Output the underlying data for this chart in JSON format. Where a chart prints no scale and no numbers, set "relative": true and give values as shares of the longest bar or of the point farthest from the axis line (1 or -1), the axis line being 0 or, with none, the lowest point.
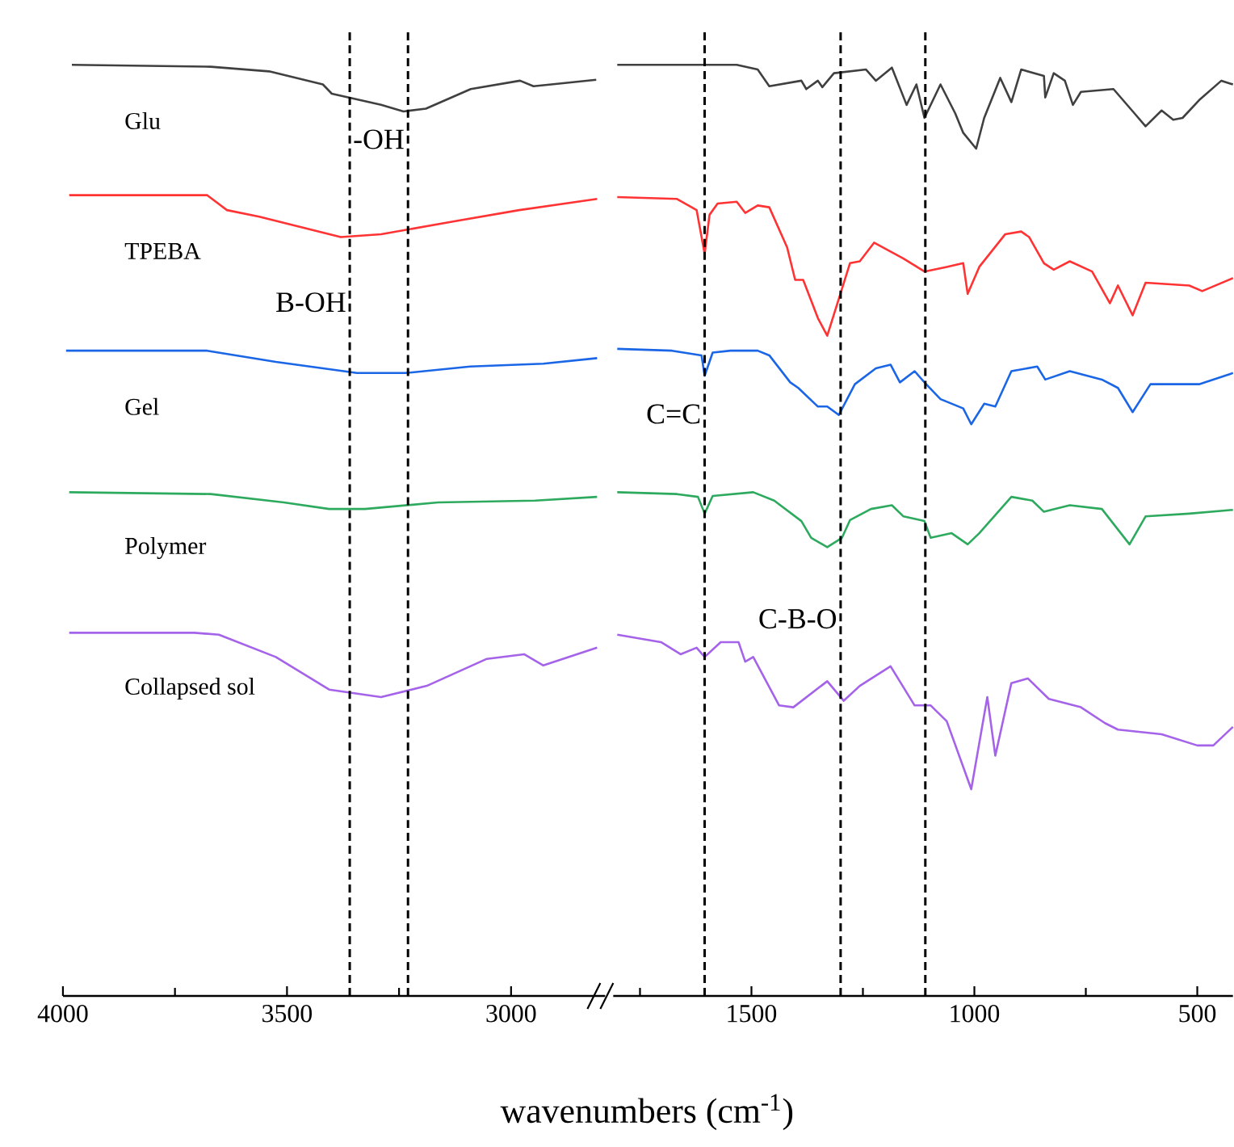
{
  "chart_data": [
    {
      "type": "line",
      "xlabel": "wavenumbers (cm$^{-1}$)",
      "relative": true,
      "tick_labels": "x",
      "xlim": [
        4000,
        2790
      ],
      "xticks": [
        4000,
        {
          "value": 3750,
          "label": null
        },
        3500,
        {
          "value": 3250,
          "label": null
        },
        3000
      ],
      "ref_lines": [
        {
          "axis": "x",
          "value": 3230,
          "label": "-OH"
        },
        {
          "axis": "x",
          "value": 3360,
          "label": "B-OH"
        }
      ],
      "series": [
        {
          "name": "Glu",
          "color": "#404040",
          "x": [
            3980,
            3670,
            3540,
            3420,
            3400,
            3290,
            3240,
            3190,
            3090,
            2980,
            2950,
            2910,
            2810
          ],
          "values": [
            1.0,
            0.998,
            0.993,
            0.979,
            0.969,
            0.957,
            0.95,
            0.953,
            0.974,
            0.983,
            0.977,
            0.979,
            0.984
          ]
        },
        {
          "name": "TPEBA",
          "color": "#ff3333",
          "x": [
            3986,
            3678,
            3634,
            3562,
            3380,
            3290,
            3127,
            2982,
            2808
          ],
          "values": [
            0.86,
            0.86,
            0.844,
            0.837,
            0.815,
            0.818,
            0.832,
            0.844,
            0.856
          ]
        },
        {
          "name": "Gel",
          "color": "#1a66e6",
          "x": [
            3993,
            3678,
            3525,
            3344,
            3236,
            3091,
            2928,
            2808
          ],
          "values": [
            0.693,
            0.693,
            0.681,
            0.669,
            0.669,
            0.676,
            0.679,
            0.685
          ]
        },
        {
          "name": "Polymer",
          "color": "#2eaa5f",
          "x": [
            3986,
            3670,
            3507,
            3406,
            3326,
            3163,
            2946,
            2808
          ],
          "values": [
            0.541,
            0.539,
            0.53,
            0.523,
            0.523,
            0.53,
            0.532,
            0.536
          ]
        },
        {
          "name": "Collapsed sol",
          "color": "#a463e8",
          "x": [
            3986,
            3707,
            3652,
            3525,
            3406,
            3290,
            3188,
            3054,
            2971,
            2928,
            2808
          ],
          "values": [
            0.39,
            0.39,
            0.388,
            0.364,
            0.329,
            0.321,
            0.333,
            0.362,
            0.367,
            0.355,
            0.374
          ]
        }
      ]
    },
    {
      "type": "line",
      "relative": true,
      "tick_labels": "x",
      "xlim": [
        1810,
        420
      ],
      "xticks": [
        {
          "value": 1750,
          "label": null
        },
        1500,
        {
          "value": 1250,
          "label": null
        },
        1000,
        {
          "value": 750,
          "label": null
        },
        500
      ],
      "ref_lines": [
        {
          "axis": "x",
          "value": 1605,
          "label": "C=C"
        },
        {
          "axis": "x",
          "value": 1300,
          "label": "C-B-O"
        },
        {
          "axis": "x",
          "value": 1110,
          "label": null
        }
      ],
      "series": [
        {
          "color": "#404040",
          "x": [
            1801,
            1533,
            1486,
            1460,
            1388,
            1377,
            1351,
            1341,
            1315,
            1243,
            1221,
            1185,
            1152,
            1130,
            1112,
            1076,
            1043,
            1025,
            996,
            978,
            942,
            917,
            895,
            844,
            841,
            822,
            797,
            779,
            761,
            688,
            641,
            616,
            580,
            554,
            533,
            496,
            446,
            420
          ],
          "values": [
            1.0,
            1.0,
            0.995,
            0.977,
            0.983,
            0.974,
            0.983,
            0.976,
            0.991,
            0.995,
            0.983,
            0.997,
            0.957,
            0.979,
            0.943,
            0.979,
            0.948,
            0.927,
            0.91,
            0.943,
            0.986,
            0.96,
            0.995,
            0.988,
            0.965,
            0.991,
            0.983,
            0.957,
            0.971,
            0.974,
            0.948,
            0.934,
            0.951,
            0.941,
            0.943,
            0.962,
            0.983,
            0.979
          ]
        },
        {
          "color": "#ff3333",
          "x": [
            1801,
            1667,
            1623,
            1605,
            1594,
            1576,
            1533,
            1514,
            1486,
            1460,
            1420,
            1402,
            1384,
            1351,
            1330,
            1279,
            1257,
            1225,
            1159,
            1112,
            1062,
            1025,
            1015,
            989,
            931,
            895,
            877,
            844,
            822,
            786,
            736,
            696,
            678,
            645,
            616,
            518,
            489,
            420
          ],
          "values": [
            0.858,
            0.856,
            0.844,
            0.797,
            0.839,
            0.851,
            0.853,
            0.841,
            0.849,
            0.847,
            0.804,
            0.769,
            0.769,
            0.728,
            0.709,
            0.787,
            0.789,
            0.809,
            0.792,
            0.778,
            0.783,
            0.787,
            0.754,
            0.783,
            0.818,
            0.821,
            0.815,
            0.787,
            0.78,
            0.789,
            0.778,
            0.744,
            0.763,
            0.731,
            0.766,
            0.763,
            0.757,
            0.771
          ]
        },
        {
          "color": "#1a66e6",
          "x": [
            1801,
            1678,
            1612,
            1605,
            1587,
            1547,
            1486,
            1460,
            1413,
            1395,
            1351,
            1330,
            1304,
            1268,
            1221,
            1188,
            1167,
            1134,
            1112,
            1076,
            1025,
            1007,
            978,
            953,
            917,
            859,
            841,
            786,
            714,
            678,
            645,
            605,
            496,
            420
          ],
          "values": [
            0.695,
            0.693,
            0.688,
            0.666,
            0.691,
            0.693,
            0.693,
            0.688,
            0.659,
            0.653,
            0.633,
            0.633,
            0.624,
            0.657,
            0.674,
            0.678,
            0.659,
            0.671,
            0.659,
            0.641,
            0.631,
            0.614,
            0.636,
            0.633,
            0.671,
            0.676,
            0.662,
            0.671,
            0.662,
            0.653,
            0.627,
            0.657,
            0.657,
            0.669
          ]
        },
        {
          "color": "#2eaa5f",
          "x": [
            1801,
            1667,
            1620,
            1605,
            1587,
            1496,
            1449,
            1388,
            1366,
            1330,
            1297,
            1279,
            1232,
            1185,
            1159,
            1112,
            1098,
            1051,
            1015,
            989,
            917,
            870,
            844,
            786,
            714,
            652,
            616,
            518,
            420
          ],
          "values": [
            0.541,
            0.539,
            0.536,
            0.518,
            0.537,
            0.541,
            0.532,
            0.51,
            0.492,
            0.482,
            0.492,
            0.511,
            0.523,
            0.527,
            0.515,
            0.51,
            0.492,
            0.497,
            0.485,
            0.497,
            0.536,
            0.532,
            0.52,
            0.527,
            0.523,
            0.485,
            0.515,
            0.518,
            0.522
          ]
        },
        {
          "color": "#a463e8",
          "x": [
            1801,
            1703,
            1659,
            1623,
            1605,
            1569,
            1529,
            1514,
            1496,
            1438,
            1406,
            1330,
            1293,
            1257,
            1188,
            1134,
            1098,
            1062,
            1007,
            971,
            953,
            917,
            880,
            833,
            761,
            707,
            678,
            580,
            500,
            464,
            420
          ],
          "values": [
            0.388,
            0.38,
            0.367,
            0.374,
            0.364,
            0.38,
            0.38,
            0.359,
            0.364,
            0.312,
            0.31,
            0.338,
            0.317,
            0.333,
            0.354,
            0.312,
            0.312,
            0.295,
            0.222,
            0.321,
            0.258,
            0.336,
            0.341,
            0.319,
            0.31,
            0.293,
            0.286,
            0.281,
            0.269,
            0.269,
            0.289
          ]
        }
      ]
    }
  ]
}
